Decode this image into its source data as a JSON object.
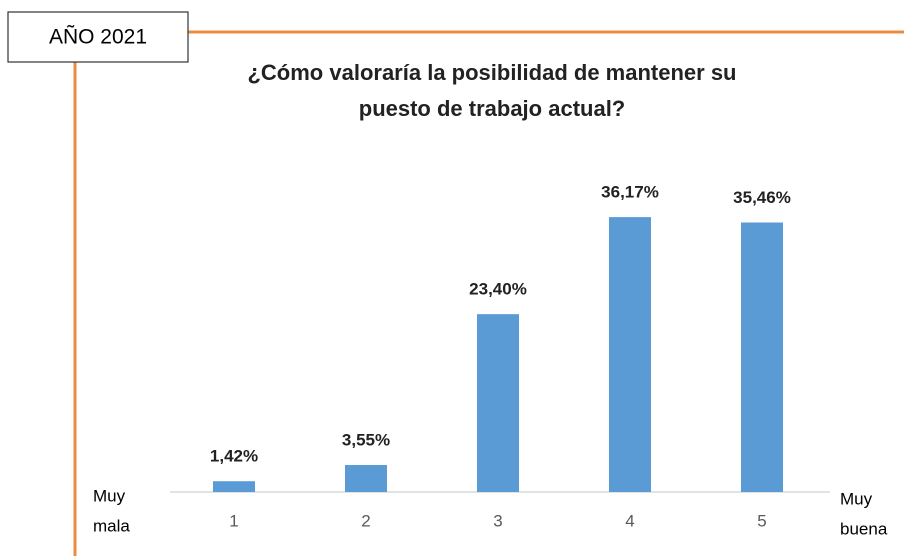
{
  "chart_data": {
    "type": "bar",
    "badge": "AÑO 2021",
    "title": [
      "¿Cómo valoraría la posibilidad de mantener su",
      "puesto de trabajo actual?"
    ],
    "low_label": [
      "Muy",
      "mala"
    ],
    "high_label": [
      "Muy",
      "buena"
    ],
    "categories": [
      "1",
      "2",
      "3",
      "4",
      "5"
    ],
    "values": [
      1.42,
      3.55,
      23.4,
      36.17,
      35.46
    ],
    "value_labels": [
      "1,42%",
      "3,55%",
      "23,40%",
      "36,17%",
      "35,46%"
    ],
    "color": "#5b9bd5",
    "ylim": [
      0,
      40
    ]
  }
}
